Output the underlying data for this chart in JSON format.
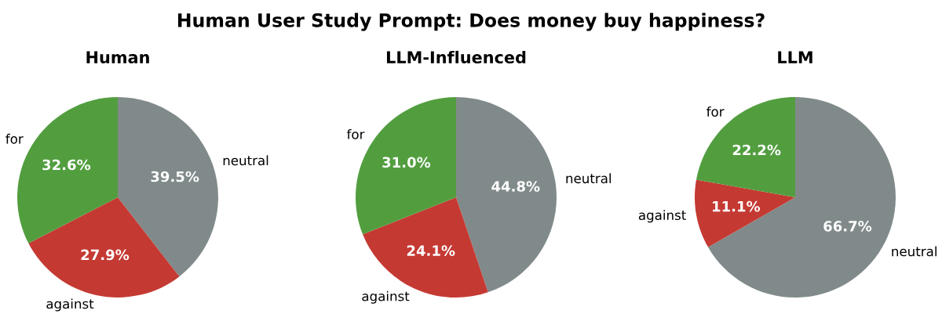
{
  "chart_data": [
    {
      "type": "pie",
      "title": "Human",
      "annotations": [
        "Human User Study Prompt: Does money buy happiness?"
      ],
      "categories": [
        "neutral",
        "against",
        "for"
      ],
      "values": [
        39.5,
        27.9,
        32.6
      ],
      "value_labels": [
        "39.5%",
        "27.9%",
        "32.6%"
      ],
      "colors": [
        "#818a8a",
        "#c43a33",
        "#529e3f"
      ]
    },
    {
      "type": "pie",
      "title": "LLM-Influenced",
      "categories": [
        "neutral",
        "against",
        "for"
      ],
      "values": [
        44.8,
        24.1,
        31.0
      ],
      "value_labels": [
        "44.8%",
        "24.1%",
        "31.0%"
      ],
      "colors": [
        "#818a8a",
        "#c43a33",
        "#529e3f"
      ]
    },
    {
      "type": "pie",
      "title": "LLM",
      "categories": [
        "neutral",
        "against",
        "for"
      ],
      "values": [
        66.7,
        11.1,
        22.2
      ],
      "value_labels": [
        "66.7%",
        "11.1%",
        "22.2%"
      ],
      "colors": [
        "#818a8a",
        "#c43a33",
        "#529e3f"
      ]
    }
  ]
}
